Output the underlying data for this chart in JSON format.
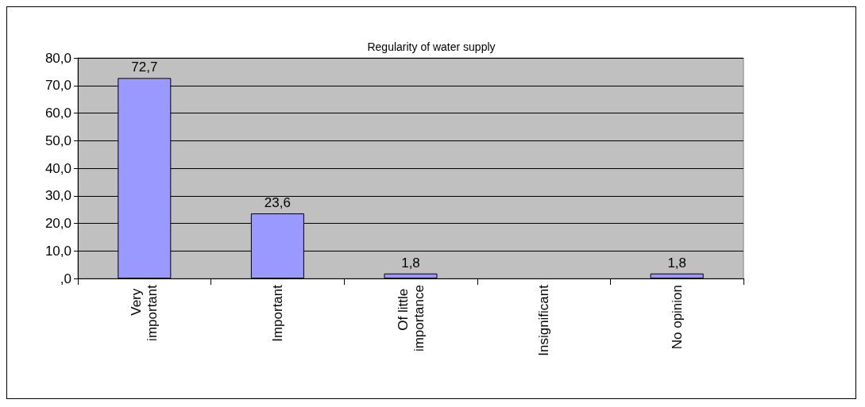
{
  "chart_data": {
    "type": "bar",
    "title": "Regularity of water supply",
    "categories": [
      "Very important",
      "Important",
      "Of little importance",
      "Insignificant",
      "No opinion"
    ],
    "values": [
      72.7,
      23.6,
      1.8,
      0,
      1.8
    ],
    "value_labels": [
      "72,7",
      "23,6",
      "1,8",
      null,
      "1,8"
    ],
    "color": "#9999ff",
    "ylim": [
      0,
      80
    ],
    "yticks": [
      {
        "value": 0,
        "label": ",0"
      },
      {
        "value": 10,
        "label": "10,0"
      },
      {
        "value": 20,
        "label": "20,0"
      },
      {
        "value": 30,
        "label": "30,0"
      },
      {
        "value": 40,
        "label": "40,0"
      },
      {
        "value": 50,
        "label": "50,0"
      },
      {
        "value": 60,
        "label": "60,0"
      },
      {
        "value": 70,
        "label": "70,0"
      },
      {
        "value": 80,
        "label": "80,0"
      }
    ],
    "grid": "y"
  }
}
